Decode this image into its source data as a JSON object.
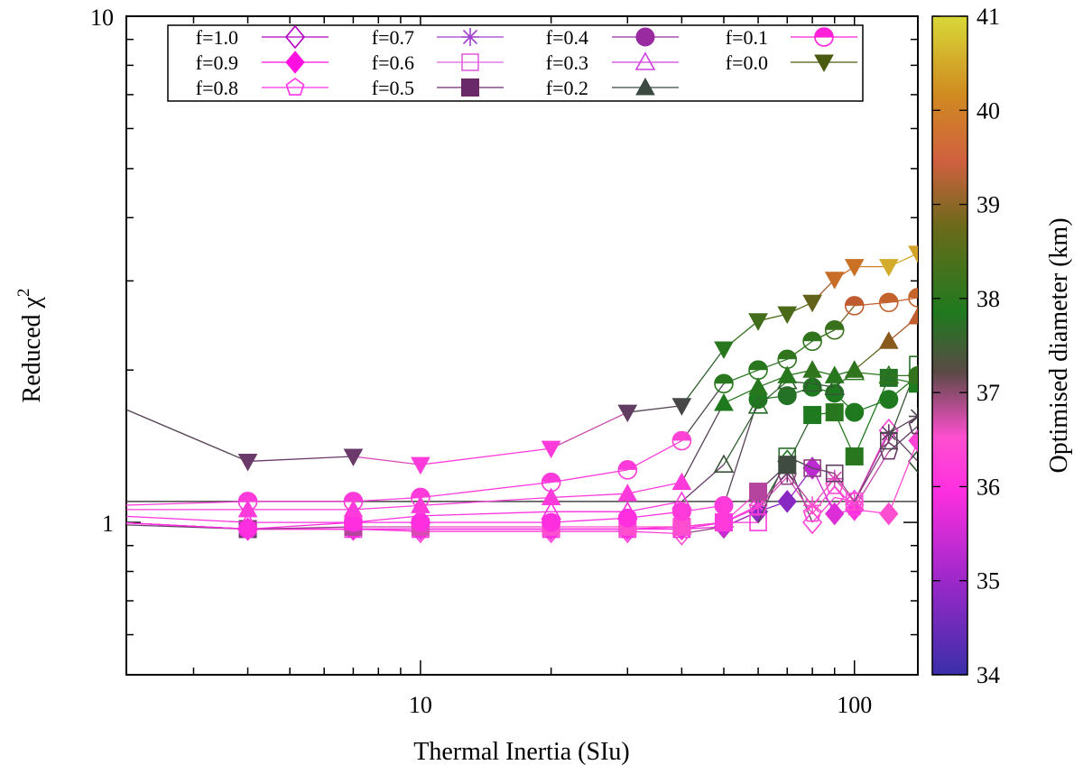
{
  "chart_data": {
    "type": "scatter",
    "xlabel": "Thermal Inertia (SIu)",
    "ylabel": "Reduced χ",
    "ylabel_superscript": "2",
    "xscale": "log",
    "yscale": "log",
    "xlim": [
      2.1,
      140
    ],
    "ylim": [
      0.5,
      10
    ],
    "x_ticks": [
      10,
      100
    ],
    "x_tick_labels": [
      "10",
      "100"
    ],
    "y_ticks": [
      1,
      10
    ],
    "y_tick_labels": [
      "1",
      "10"
    ],
    "reference_line_y": 1.1,
    "legend_position": "top",
    "colorbar": {
      "label": "Optimised diameter (km)",
      "min": 34,
      "max": 41,
      "ticks": [
        34,
        35,
        36,
        37,
        38,
        39,
        40,
        41
      ],
      "tick_labels": [
        "34",
        "35",
        "36",
        "37",
        "38",
        "39",
        "40",
        "41"
      ]
    },
    "x": [
      2,
      4,
      7,
      10,
      20,
      30,
      40,
      50,
      60,
      70,
      80,
      90,
      100,
      120,
      140
    ],
    "series": [
      {
        "name": "f=1.0",
        "marker": "diamond-open",
        "y": [
          1.0,
          0.97,
          0.97,
          0.96,
          0.96,
          0.96,
          0.95,
          0.98,
          1.05,
          1.32,
          1.0,
          1.12,
          1.1,
          1.52,
          1.32
        ],
        "d": [
          35.7,
          35.7,
          35.7,
          35.7,
          35.7,
          35.7,
          35.9,
          36.5,
          37.2,
          37.4,
          35.8,
          35.8,
          35.6,
          35.8,
          37.0
        ]
      },
      {
        "name": "f=0.9",
        "marker": "diamond",
        "y": [
          1.0,
          0.97,
          0.97,
          0.97,
          0.97,
          0.97,
          0.97,
          0.98,
          1.05,
          1.1,
          1.28,
          1.04,
          1.06,
          1.04,
          1.45
        ],
        "d": [
          35.6,
          35.6,
          35.6,
          35.6,
          35.6,
          35.6,
          35.6,
          35.3,
          34.9,
          34.8,
          35.2,
          35.4,
          35.6,
          35.9,
          35.8
        ]
      },
      {
        "name": "f=0.8",
        "marker": "pentagon-open",
        "y": [
          1.0,
          0.97,
          0.97,
          0.97,
          0.97,
          0.97,
          0.98,
          1.0,
          1.07,
          1.23,
          1.04,
          1.18,
          1.07,
          1.38,
          1.55
        ],
        "d": [
          35.6,
          35.6,
          35.6,
          35.6,
          35.6,
          35.6,
          35.6,
          35.6,
          35.8,
          36.2,
          35.8,
          35.9,
          35.8,
          36.3,
          36.5
        ]
      },
      {
        "name": "f=0.7",
        "marker": "asterisk",
        "y": [
          1.0,
          0.97,
          0.97,
          0.97,
          0.97,
          0.97,
          0.98,
          1.0,
          1.08,
          1.25,
          1.08,
          1.22,
          1.1,
          1.5,
          1.62
        ],
        "d": [
          35.6,
          35.6,
          35.6,
          35.6,
          35.6,
          35.6,
          35.6,
          35.6,
          35.8,
          36.3,
          35.9,
          36.0,
          35.9,
          36.4,
          36.6
        ]
      },
      {
        "name": "f=0.6",
        "marker": "square-open",
        "y": [
          1.0,
          0.97,
          0.97,
          0.97,
          0.97,
          0.97,
          0.97,
          1.0,
          1.0,
          1.35,
          1.28,
          1.25,
          1.1,
          1.45,
          2.05
        ],
        "d": [
          35.6,
          35.6,
          35.6,
          35.6,
          35.6,
          35.6,
          35.6,
          35.6,
          35.7,
          37.2,
          36.2,
          36.4,
          35.9,
          36.6,
          37.3
        ]
      },
      {
        "name": "f=0.5",
        "marker": "square",
        "y": [
          0.99,
          0.97,
          0.98,
          0.98,
          0.98,
          0.98,
          0.98,
          1.0,
          1.15,
          1.3,
          1.63,
          1.65,
          1.35,
          1.93,
          1.88
        ],
        "d": [
          36.3,
          36.3,
          36.1,
          36.0,
          35.9,
          35.9,
          35.9,
          35.7,
          36.1,
          36.8,
          37.4,
          37.5,
          37.5,
          37.3,
          37.4
        ]
      },
      {
        "name": "f=0.4",
        "marker": "circle",
        "y": [
          1.0,
          0.97,
          1.0,
          1.0,
          1.0,
          1.02,
          1.05,
          1.08,
          1.75,
          1.78,
          1.85,
          1.8,
          1.65,
          1.75,
          1.95
        ],
        "d": [
          35.6,
          35.6,
          35.6,
          35.6,
          35.6,
          35.6,
          35.7,
          35.7,
          37.4,
          37.3,
          37.4,
          37.4,
          37.4,
          37.4,
          37.6
        ]
      },
      {
        "name": "f=0.3",
        "marker": "triangle-open",
        "y": [
          1.03,
          1.0,
          1.0,
          1.03,
          1.05,
          1.05,
          1.1,
          1.3,
          1.7,
          1.9,
          1.88,
          1.85,
          1.98,
          1.95,
          1.95
        ],
        "d": [
          35.6,
          35.6,
          35.6,
          35.6,
          35.6,
          35.6,
          35.7,
          36.9,
          37.2,
          37.1,
          37.0,
          37.0,
          37.5,
          37.6,
          37.7
        ]
      },
      {
        "name": "f=0.2",
        "marker": "triangle",
        "y": [
          1.06,
          1.06,
          1.06,
          1.08,
          1.12,
          1.14,
          1.2,
          1.72,
          1.85,
          1.95,
          2.0,
          1.95,
          2.0,
          2.28,
          2.55
        ],
        "d": [
          35.7,
          35.7,
          35.7,
          35.7,
          35.7,
          35.7,
          35.7,
          37.4,
          37.5,
          37.5,
          37.6,
          37.5,
          37.6,
          38.6,
          39.1
        ]
      },
      {
        "name": "f=0.1",
        "marker": "circle-half",
        "y": [
          1.08,
          1.1,
          1.1,
          1.12,
          1.2,
          1.27,
          1.45,
          1.88,
          2.0,
          2.1,
          2.28,
          2.4,
          2.68,
          2.72,
          2.78
        ],
        "d": [
          35.7,
          35.7,
          35.7,
          35.7,
          35.7,
          35.7,
          35.8,
          37.5,
          37.5,
          37.6,
          37.6,
          37.7,
          39.0,
          39.2,
          39.3
        ]
      },
      {
        "name": "f=0.0",
        "marker": "triangle-down",
        "y": [
          1.7,
          1.32,
          1.35,
          1.3,
          1.4,
          1.65,
          1.7,
          2.2,
          2.5,
          2.58,
          2.72,
          3.02,
          3.2,
          3.2,
          3.4
        ],
        "d": [
          36.8,
          36.3,
          36.3,
          35.7,
          35.7,
          36.4,
          36.7,
          37.5,
          37.8,
          37.9,
          38.2,
          39.5,
          39.6,
          40.5,
          40.4
        ]
      }
    ]
  }
}
